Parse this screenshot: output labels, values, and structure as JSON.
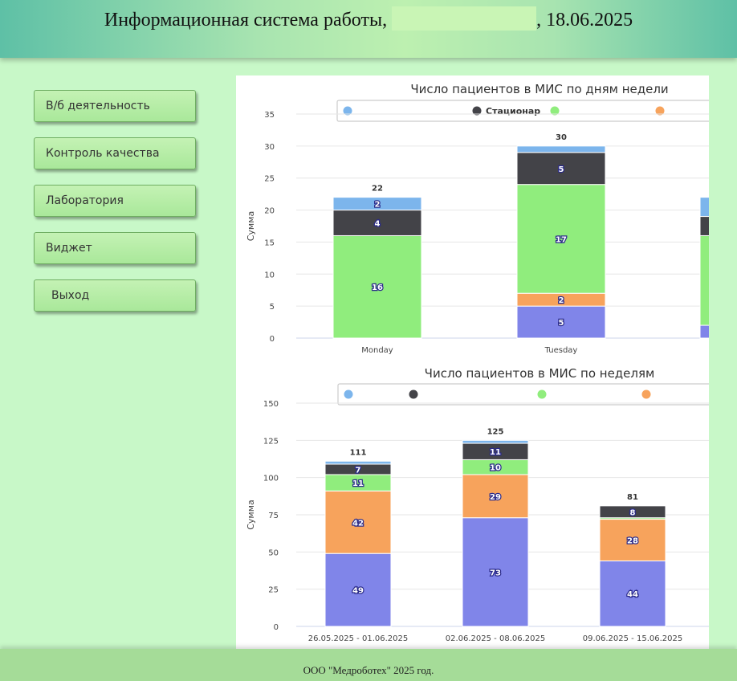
{
  "header": {
    "title_prefix": "Информационная система работы,",
    "title_suffix": ", 18.06.2025"
  },
  "sidebar": {
    "items": [
      {
        "label": "В/б деятельность"
      },
      {
        "label": "Контроль качества"
      },
      {
        "label": "Лаборатория"
      },
      {
        "label": "Виджет"
      },
      {
        "label": "Выход"
      }
    ]
  },
  "footer": {
    "text": "ООО \"Медроботех\" 2025 год."
  },
  "colors": {
    "blue": "#7cb5ec",
    "dark": "#434348",
    "green": "#90ed7d",
    "orange": "#f7a35c",
    "purple": "#8085e9",
    "background": "#c8f8c8"
  },
  "chart_data": [
    {
      "type": "bar",
      "stacked": true,
      "title": "Число пациентов в МИС по дням недели",
      "ylabel": "Сумма",
      "ylim": [
        0,
        35
      ],
      "yticks": [
        0,
        5,
        10,
        15,
        20,
        25,
        30,
        35
      ],
      "categories": [
        "Monday",
        "Tuesday",
        ""
      ],
      "legend": {
        "placement": "top",
        "labels": [
          "",
          "Стационар",
          "",
          ""
        ]
      },
      "totals": [
        22,
        30,
        null
      ],
      "series": [
        {
          "name": "",
          "color": "#8085e9",
          "values": [
            0,
            5,
            2
          ]
        },
        {
          "name": "",
          "color": "#f7a35c",
          "values": [
            0,
            2,
            0
          ]
        },
        {
          "name": "",
          "color": "#90ed7d",
          "values": [
            16,
            17,
            14
          ]
        },
        {
          "name": "Стационар",
          "color": "#434348",
          "values": [
            4,
            5,
            3
          ]
        },
        {
          "name": "",
          "color": "#7cb5ec",
          "values": [
            2,
            1,
            3
          ]
        }
      ]
    },
    {
      "type": "bar",
      "stacked": true,
      "title": "Число пациентов в МИС по неделям",
      "ylabel": "Сумма",
      "ylim": [
        0,
        150
      ],
      "yticks": [
        0,
        25,
        50,
        75,
        100,
        125,
        150
      ],
      "categories": [
        "26.05.2025 - 01.06.2025",
        "02.06.2025 - 08.06.2025",
        "09.06.2025 - 15.06.2025"
      ],
      "legend": {
        "placement": "top",
        "labels": [
          "",
          "",
          "",
          ""
        ]
      },
      "totals": [
        111,
        125,
        81
      ],
      "series": [
        {
          "name": "",
          "color": "#8085e9",
          "values": [
            49,
            73,
            44
          ]
        },
        {
          "name": "",
          "color": "#f7a35c",
          "values": [
            42,
            29,
            28
          ]
        },
        {
          "name": "",
          "color": "#90ed7d",
          "values": [
            11,
            10,
            1
          ]
        },
        {
          "name": "",
          "color": "#434348",
          "values": [
            7,
            11,
            8
          ]
        },
        {
          "name": "",
          "color": "#7cb5ec",
          "values": [
            2,
            2,
            0
          ]
        }
      ]
    }
  ]
}
